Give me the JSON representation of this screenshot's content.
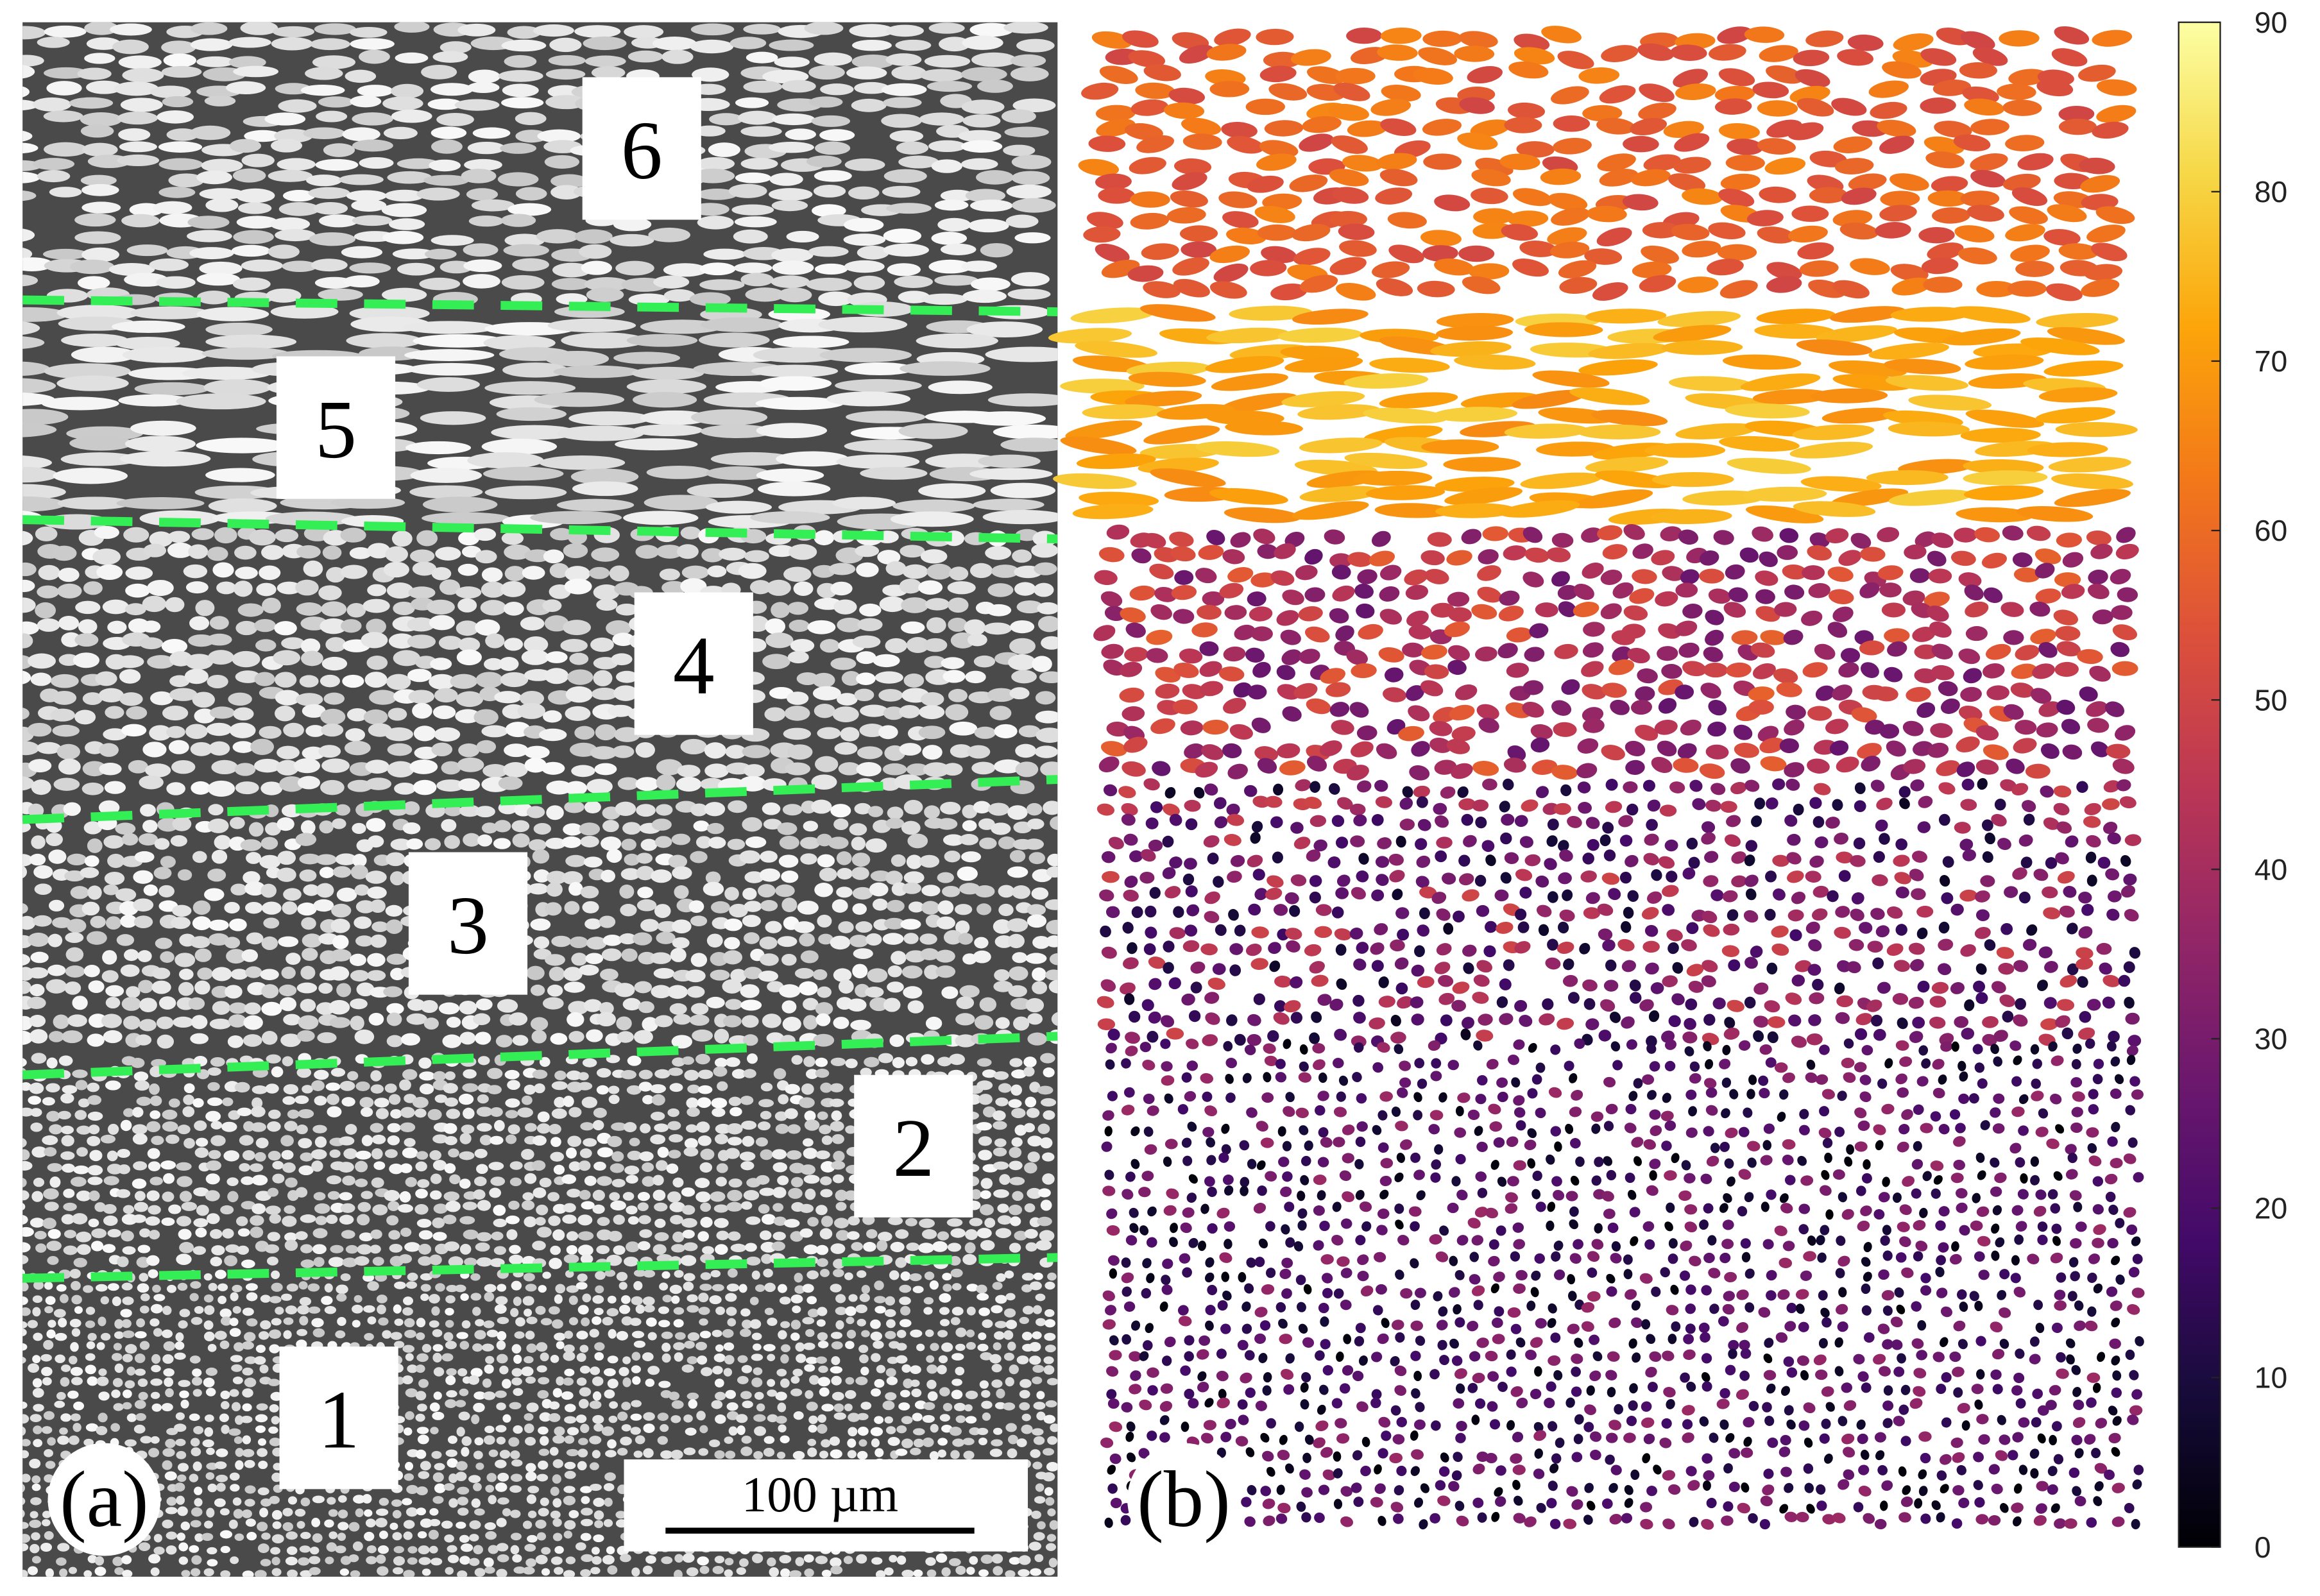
{
  "panel_a": {
    "label": "(a)",
    "layers": [
      "1",
      "2",
      "3",
      "4",
      "5",
      "6"
    ],
    "scale_bar": "100 µm"
  },
  "panel_b": {
    "label": "(b)",
    "colorbar": {
      "lim": [
        0,
        90
      ],
      "ticks": [
        0,
        10,
        20,
        30,
        40,
        50,
        60,
        70,
        80,
        90
      ]
    }
  }
}
